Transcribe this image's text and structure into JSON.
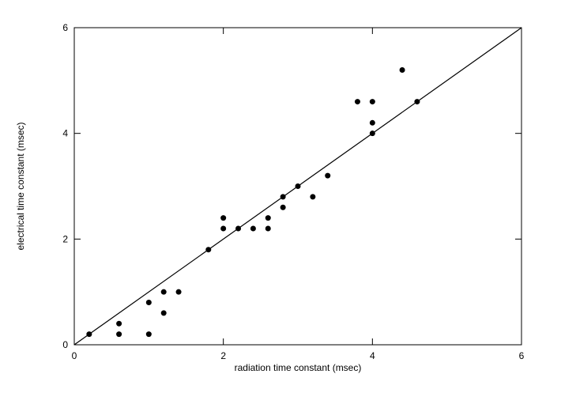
{
  "chart_data": {
    "type": "scatter",
    "xlabel": "radiation time constant (msec)",
    "ylabel": "electrical time constant (msec)",
    "xlim": [
      0,
      6
    ],
    "ylim": [
      0,
      6
    ],
    "xticks": [
      0,
      2,
      4,
      6
    ],
    "yticks": [
      0,
      2,
      4,
      6
    ],
    "color": "#000000",
    "x": [
      0.2,
      0.6,
      0.6,
      1.0,
      1.0,
      1.2,
      1.2,
      1.4,
      1.8,
      2.0,
      2.0,
      2.2,
      2.4,
      2.6,
      2.6,
      2.8,
      2.8,
      3.0,
      3.2,
      3.4,
      3.8,
      4.0,
      4.0,
      4.0,
      4.4,
      4.6
    ],
    "values": [
      0.2,
      0.4,
      0.2,
      0.2,
      0.8,
      1.0,
      0.6,
      1.0,
      1.8,
      2.4,
      2.2,
      2.2,
      2.2,
      2.4,
      2.2,
      2.8,
      2.6,
      3.0,
      2.8,
      3.2,
      4.6,
      4.6,
      4.2,
      4.0,
      5.2,
      4.6
    ],
    "reference_line": {
      "x": [
        0,
        6
      ],
      "y": [
        0,
        6
      ]
    }
  }
}
